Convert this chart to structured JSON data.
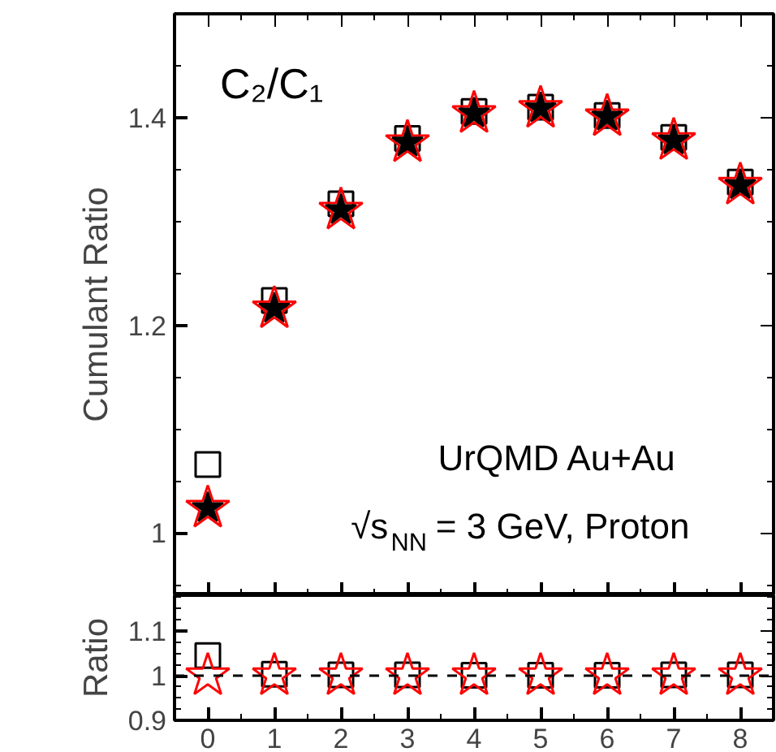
{
  "chart_data": [
    {
      "type": "scatter",
      "ylabel": "Cumulant Ratio",
      "xlim": [
        -0.5,
        8.5
      ],
      "ylim": [
        0.94,
        1.5
      ],
      "yticks": [
        1,
        1.2,
        1.4
      ],
      "xticks": [
        0,
        1,
        2,
        3,
        4,
        5,
        6,
        7,
        8
      ],
      "tick_labels": "y",
      "x": [
        0,
        1,
        2,
        3,
        4,
        5,
        6,
        7,
        8
      ],
      "annotations": [
        "C₂/C₁",
        "UrQMD Au+Au",
        "√s$_{NN}$ = 3 GeV, Proton"
      ],
      "series": [
        {
          "color": "#000000",
          "marker": "square",
          "values": [
            1.066,
            1.224,
            1.317,
            1.38,
            1.406,
            1.41,
            1.402,
            1.381,
            1.338
          ]
        },
        {
          "color": "#ff0000",
          "marker": "star",
          "values": [
            1.024,
            1.216,
            1.311,
            1.376,
            1.404,
            1.409,
            1.401,
            1.378,
            1.335
          ]
        },
        {
          "color": "#000000",
          "marker": "star",
          "values": [
            1.024,
            1.216,
            1.311,
            1.376,
            1.404,
            1.409,
            1.401,
            1.378,
            1.335
          ]
        }
      ]
    },
    {
      "type": "scatter",
      "ylabel": "Ratio",
      "xlim": [
        -0.5,
        8.5
      ],
      "ylim": [
        0.9,
        1.18
      ],
      "yticks": [
        0.9,
        1,
        1.1
      ],
      "xticks": [
        0,
        1,
        2,
        3,
        4,
        5,
        6,
        7,
        8
      ],
      "x": [
        0,
        1,
        2,
        3,
        4,
        5,
        6,
        7,
        8
      ],
      "ref_lines": [
        {
          "axis": "y",
          "value": 1,
          "color": "#000000",
          "line_style": "dashed"
        }
      ],
      "series": [
        {
          "color": "#000000",
          "marker": "square",
          "values": [
            1.045,
            1.003,
            1.002,
            1.002,
            1.001,
            1.001,
            1.001,
            1.002,
            1.002
          ]
        },
        {
          "color": "#ff0000",
          "marker": "star",
          "values": [
            1.0,
            1.0,
            1.0,
            1.0,
            1.0,
            1.0,
            1.0,
            1.0,
            1.0
          ]
        }
      ]
    }
  ]
}
